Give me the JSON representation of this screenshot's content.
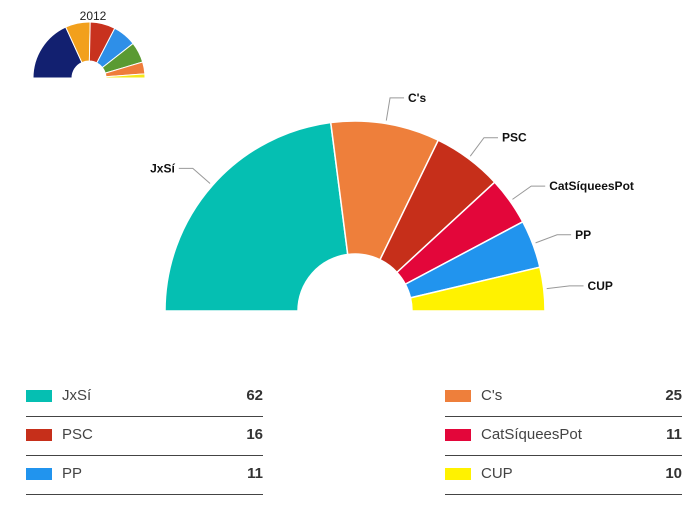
{
  "chart_data": [
    {
      "type": "pie",
      "subtype": "half-donut",
      "title": "2012",
      "values": [
        {
          "color": "#122070"
        },
        {
          "color": "#f2a01c"
        },
        {
          "color": "#c8321e"
        },
        {
          "color": "#2e8fe8"
        },
        {
          "color": "#5a9a32"
        },
        {
          "color": "#ef7c3a"
        },
        {
          "color": "#f5e81c"
        }
      ],
      "proportions": [
        0.37,
        0.146,
        0.148,
        0.139,
        0.121,
        0.07,
        0.024
      ]
    },
    {
      "type": "pie",
      "subtype": "half-donut",
      "title": "",
      "slices": [
        {
          "label": "JxSí",
          "value": 62,
          "color": "#05bfb2"
        },
        {
          "label": "C's",
          "value": 25,
          "color": "#ee7f3b"
        },
        {
          "label": "PSC",
          "value": 16,
          "color": "#c62f1a"
        },
        {
          "label": "CatSíqueesPot",
          "value": 11,
          "color": "#e3063a"
        },
        {
          "label": "PP",
          "value": 11,
          "color": "#2194ee"
        },
        {
          "label": "CUP",
          "value": 10,
          "color": "#fff200"
        }
      ]
    }
  ],
  "legend": {
    "left": [
      {
        "label": "JxSí",
        "value": "62",
        "color": "#05bfb2"
      },
      {
        "label": "PSC",
        "value": "16",
        "color": "#c62f1a"
      },
      {
        "label": "PP",
        "value": "11",
        "color": "#2194ee"
      }
    ],
    "right": [
      {
        "label": "C's",
        "value": "25",
        "color": "#ee7f3b"
      },
      {
        "label": "CatSíqueesPot",
        "value": "11",
        "color": "#e3063a"
      },
      {
        "label": "CUP",
        "value": "10",
        "color": "#fff200"
      }
    ]
  }
}
